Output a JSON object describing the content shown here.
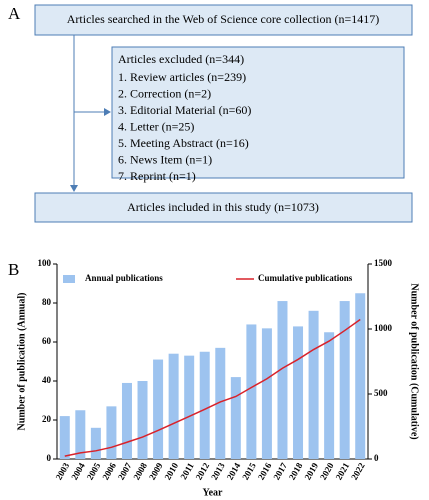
{
  "panel_labels": [
    "A",
    "B"
  ],
  "panel_a": {
    "top": "Articles searched in the Web of Science core collection (n=1417)",
    "excluded": {
      "title": "Articles excluded (n=344)",
      "items": [
        "1. Review articles (n=239)",
        "2. Correction (n=2)",
        "3. Editorial Material (n=60)",
        "4. Letter (n=25)",
        "5. Meeting Abstract (n=16)",
        "6. News Item (n=1)",
        "7. Reprint (n=1)"
      ]
    },
    "bottom": "Articles included in this study (n=1073)"
  },
  "chart_data": {
    "type": "bar",
    "xlabel": "Year",
    "ylabel": "Number of publication (Annual)",
    "y2label": "Number of publication (Cumulative)",
    "categories": [
      "2003",
      "2004",
      "2005",
      "2006",
      "2007",
      "2008",
      "2009",
      "2010",
      "2011",
      "2012",
      "2013",
      "2014",
      "2015",
      "2016",
      "2017",
      "2018",
      "2019",
      "2020",
      "2021",
      "2022"
    ],
    "series": [
      {
        "name": "Annual publications",
        "type": "bar",
        "color": "#9dc3ef",
        "values": [
          22,
          25,
          16,
          27,
          39,
          40,
          51,
          54,
          53,
          55,
          57,
          42,
          69,
          67,
          81,
          68,
          76,
          65,
          81,
          85
        ]
      },
      {
        "name": "Cumulative publications",
        "type": "line",
        "axis": "y2",
        "color": "#d9222a",
        "values": [
          22,
          47,
          63,
          90,
          129,
          169,
          220,
          274,
          327,
          382,
          439,
          481,
          550,
          617,
          698,
          766,
          842,
          907,
          988,
          1073
        ]
      }
    ],
    "ylim": [
      0,
      100
    ],
    "yticks": [
      0,
      20,
      40,
      60,
      80,
      100
    ],
    "y2lim": [
      0,
      1500
    ],
    "y2ticks": [
      0,
      500,
      1000,
      1500
    ]
  }
}
